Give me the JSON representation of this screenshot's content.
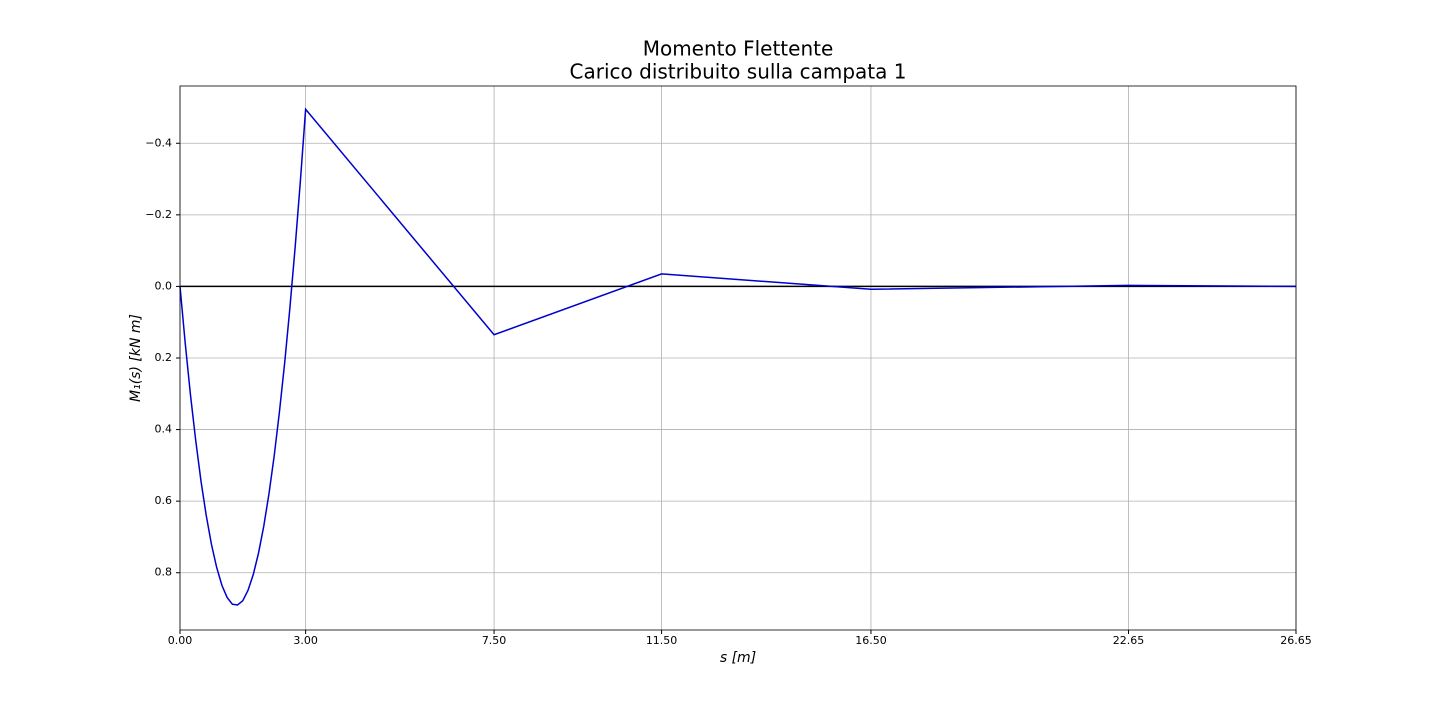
{
  "chart_data": {
    "type": "line",
    "title": "Momento Flettente",
    "subtitle": "Carico distribuito sulla campata 1",
    "x_label": "s [m]",
    "y_label": "M₁(s) [kN m]",
    "x": [
      0,
      0.125,
      0.25,
      0.375,
      0.5,
      0.625,
      0.75,
      0.875,
      1.0,
      1.125,
      1.25,
      1.375,
      1.5,
      1.625,
      1.75,
      1.875,
      2.0,
      2.125,
      2.25,
      2.375,
      2.5,
      2.625,
      2.75,
      2.875,
      3.0,
      7.5,
      11.5,
      16.5,
      22.65,
      26.65
    ],
    "series": [
      {
        "color": "#0000cc",
        "values": [
          0,
          0.159,
          0.303,
          0.43,
          0.543,
          0.639,
          0.72,
          0.785,
          0.835,
          0.869,
          0.888,
          0.89,
          0.878,
          0.849,
          0.805,
          0.745,
          0.67,
          0.579,
          0.473,
          0.35,
          0.213,
          0.059,
          -0.11,
          -0.295,
          -0.495,
          0.135,
          -0.035,
          0.008,
          -0.003,
          0
        ]
      }
    ],
    "xlim": [
      0,
      26.65
    ],
    "xticks": [
      {
        "value": 0,
        "label": "0.00"
      },
      {
        "value": 3,
        "label": "3.00"
      },
      {
        "value": 7.5,
        "label": "7.50"
      },
      {
        "value": 11.5,
        "label": "11.50"
      },
      {
        "value": 16.5,
        "label": "16.50"
      },
      {
        "value": 22.65,
        "label": "22.65"
      },
      {
        "value": 26.65,
        "label": "26.65"
      }
    ],
    "ylim": [
      -0.56,
      0.96
    ],
    "yticks": [
      {
        "value": -0.4,
        "label": "−0.4"
      },
      {
        "value": -0.2,
        "label": "−0.2"
      },
      {
        "value": 0,
        "label": "0.0"
      },
      {
        "value": 0.2,
        "label": "0.2"
      },
      {
        "value": 0.4,
        "label": "0.4"
      },
      {
        "value": 0.6,
        "label": "0.6"
      },
      {
        "value": 0.8,
        "label": "0.8"
      }
    ],
    "y_inverted": true,
    "grid": true,
    "hline": 0,
    "hline_color": "#000000"
  }
}
